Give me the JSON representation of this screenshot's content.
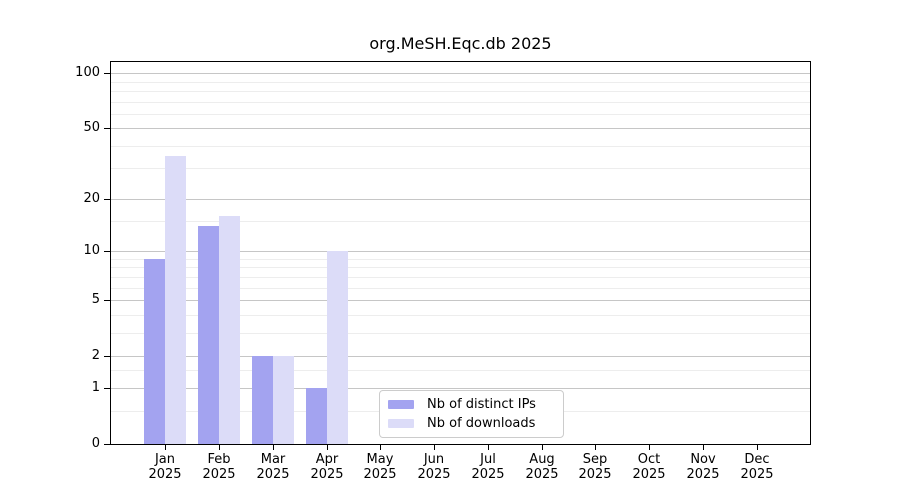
{
  "chart_data": {
    "type": "bar",
    "title": "org.MeSH.Eqc.db 2025",
    "xlabel": "",
    "ylabel": "",
    "categories": [
      "Jan 2025",
      "Feb 2025",
      "Mar 2025",
      "Apr 2025",
      "May 2025",
      "Jun 2025",
      "Jul 2025",
      "Aug 2025",
      "Sep 2025",
      "Oct 2025",
      "Nov 2025",
      "Dec 2025"
    ],
    "series": [
      {
        "name": "Nb of distinct IPs",
        "color": "#a3a3f0",
        "values": [
          9,
          14,
          2,
          1,
          0,
          0,
          0,
          0,
          0,
          0,
          0,
          0
        ]
      },
      {
        "name": "Nb of downloads",
        "color": "#dcdcf8",
        "values": [
          35,
          16,
          2,
          10,
          0,
          0,
          0,
          0,
          0,
          0,
          0,
          0
        ]
      }
    ],
    "y_scale": "log1p",
    "y_ticks": [
      0,
      1,
      2,
      5,
      10,
      20,
      50,
      100
    ],
    "y_minor_ticks": [
      0.5,
      1.5,
      3,
      4,
      6,
      7,
      8,
      9,
      15,
      30,
      40,
      60,
      70,
      80,
      90
    ],
    "ylim": [
      0,
      112
    ],
    "grid": true,
    "legend": {
      "position": "inside-bottom-center",
      "items": [
        "Nb of distinct IPs",
        "Nb of downloads"
      ]
    }
  },
  "colors": {
    "distinct_ips": "#a3a3f0",
    "downloads": "#dcdcf8",
    "grid_major": "#c6c6c6",
    "grid_minor": "#ededed",
    "axis": "#000000",
    "legend_border": "#cccccc",
    "background": "#ffffff"
  }
}
